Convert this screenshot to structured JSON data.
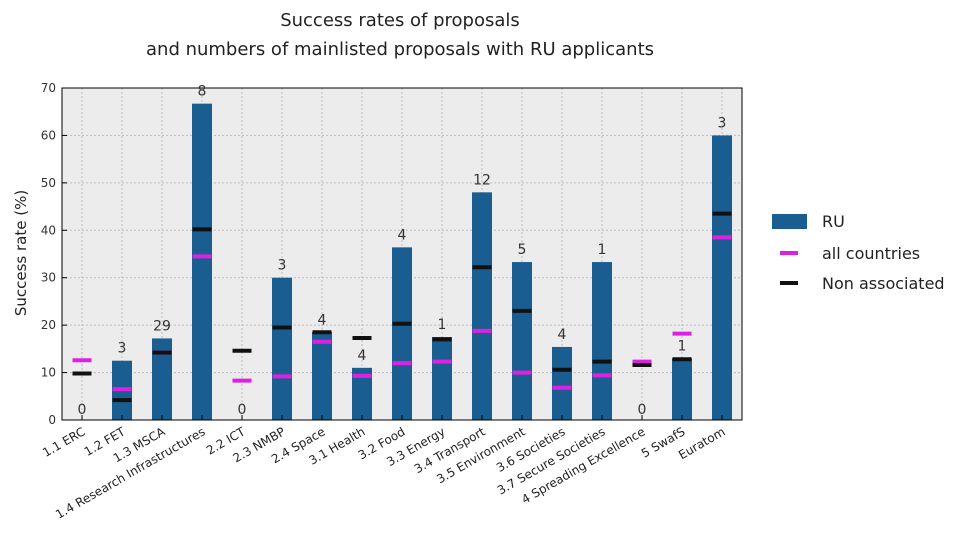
{
  "chart_data": {
    "type": "bar",
    "title_line1": "Success rates of proposals",
    "title_line2": "and numbers of mainlisted proposals with RU applicants",
    "xlabel": "",
    "ylabel": "Success rate (%)",
    "ylim": [
      0,
      70
    ],
    "yticks": [
      0,
      10,
      20,
      30,
      40,
      50,
      60,
      70
    ],
    "grid": true,
    "legend_position": "right",
    "categories": [
      "1.1 ERC",
      "1.2 FET",
      "1.3 MSCA",
      "1.4 Research Infrastructures",
      "2.2 ICT",
      "2.3 NMBP",
      "2.4 Space",
      "3.1 Health",
      "3.2 Food",
      "3.3 Energy",
      "3.4 Transport",
      "3.5 Environment",
      "3.6 Societies",
      "3.7 Secure Societies",
      "4 Spreading Excellence",
      "5 SwafS",
      "Euratom"
    ],
    "series": [
      {
        "name": "RU",
        "kind": "bar",
        "color": "#1a5e91",
        "values": [
          0,
          12.5,
          17.2,
          66.7,
          0,
          30,
          18.5,
          11,
          36.4,
          17.5,
          48,
          33.3,
          15.4,
          33.3,
          0,
          13,
          60
        ]
      },
      {
        "name": "all countries",
        "kind": "marker",
        "color": "#e020e0",
        "values": [
          12.6,
          6.5,
          14.2,
          34.5,
          8.3,
          9.2,
          16.5,
          9.3,
          12,
          12.3,
          18.8,
          10,
          6.8,
          9.4,
          12.3,
          18.2,
          38.5
        ]
      },
      {
        "name": "Non associated",
        "kind": "marker",
        "color": "#111111",
        "values": [
          9.8,
          4.2,
          14.2,
          40.2,
          14.6,
          19.5,
          18.5,
          17.3,
          20.3,
          17,
          32.2,
          23,
          10.6,
          12.3,
          11.6,
          12.8,
          43.5
        ]
      }
    ],
    "counts": [
      "0",
      "3",
      "29",
      "8",
      "0",
      "3",
      "4",
      "4",
      "4",
      "1",
      "12",
      "5",
      "4",
      "1",
      "0",
      "1",
      "3"
    ]
  }
}
